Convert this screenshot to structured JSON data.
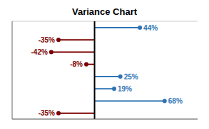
{
  "chart_data": {
    "type": "lollipop",
    "title": "Variance Chart",
    "orientation": "horizontal",
    "categories": [
      null,
      null,
      null,
      null,
      null,
      null,
      null,
      null
    ],
    "values": [
      44,
      -35,
      -42,
      -8,
      25,
      19,
      68,
      -35
    ],
    "value_labels": [
      "44%",
      "-35%",
      "-42%",
      "-8%",
      "25%",
      "19%",
      "68%",
      "-35%"
    ],
    "colors": [
      "#2E74B5",
      "#7B0000",
      "#7B0000",
      "#7B0000",
      "#2E74B5",
      "#2E74B5",
      "#2E74B5",
      "#7B0000"
    ],
    "xlim": [
      -80,
      100
    ],
    "data_labels": true,
    "tick_labels": false,
    "grid": true
  }
}
